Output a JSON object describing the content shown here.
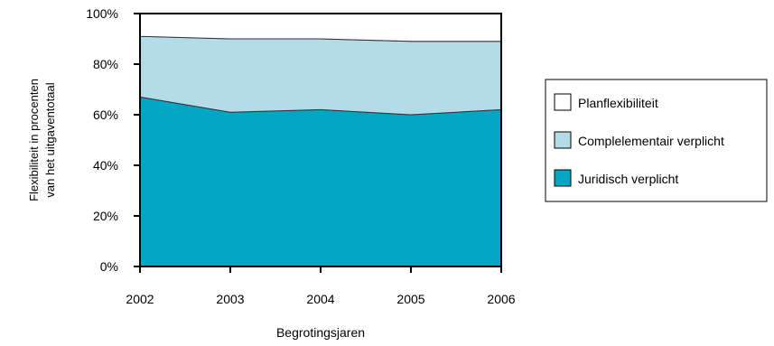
{
  "chart_data": {
    "type": "area",
    "stacked": true,
    "title": "",
    "x": [
      "2002",
      "2003",
      "2004",
      "2005",
      "2006"
    ],
    "xlabel": "Begrotingsjaren",
    "ylabel_lines": [
      "Flexibiliteit in procenten",
      "van het uitgaventotaal"
    ],
    "ylim": [
      0,
      100
    ],
    "yticks": [
      "0%",
      "20%",
      "40%",
      "60%",
      "80%",
      "100%"
    ],
    "grid": false,
    "legend_position": "right",
    "series": [
      {
        "name": "Juridisch verplicht",
        "values": [
          67,
          61,
          62,
          60,
          62
        ],
        "color": "#00a6c3"
      },
      {
        "name": "Complelementair verplicht",
        "values": [
          24,
          29,
          28,
          29,
          27
        ],
        "color": "#b3dce8"
      },
      {
        "name": "Planflexibiliteit",
        "values": [
          9,
          10,
          10,
          11,
          11
        ],
        "color": "#ffffff"
      }
    ],
    "legend_order": [
      "Planflexibiliteit",
      "Complelementair verplicht",
      "Juridisch verplicht"
    ]
  }
}
